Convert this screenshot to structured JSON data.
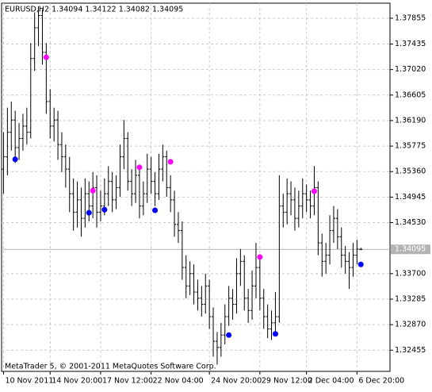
{
  "chart_data": {
    "type": "ohlc",
    "title": "EURUSD,H2  1.34094 1.34122 1.34082 1.34095",
    "footer": "MetaTrader 5, © 2001-2011 MetaQuotes Software Corp.",
    "xlim": [
      -0.5,
      99.5
    ],
    "ylim": [
      1.3211,
      1.381
    ],
    "grid": true,
    "color": "#000000",
    "yticks": [
      1.37855,
      1.37435,
      {
        "value": 1.3702,
        "label": "1.37020"
      },
      1.36605,
      {
        "value": 1.3619,
        "label": "1.36190"
      },
      1.35775,
      {
        "value": 1.3536,
        "label": "1.35360"
      },
      1.34945,
      {
        "value": 1.3453,
        "label": "1.34530"
      },
      {
        "value": 1.337,
        "label": "1.33700"
      },
      1.33285,
      {
        "value": 1.3287,
        "label": "1.32870"
      },
      1.32455
    ],
    "xticks": [
      {
        "value": 0,
        "label": "10 Nov 2011"
      },
      {
        "value": 12,
        "label": "14 Nov 20:00"
      },
      {
        "value": 25,
        "label": "17 Nov 12:00"
      },
      {
        "value": 38,
        "label": "22 Nov 04:00"
      },
      {
        "value": 53,
        "label": "24 Nov 20:00"
      },
      {
        "value": 66,
        "label": "29 Nov 12:00"
      },
      {
        "value": 78,
        "label": "2 Dec 04:00"
      },
      {
        "value": 91,
        "label": "6 Dec 20:00"
      }
    ],
    "open": [
      1.354,
      1.356,
      1.36,
      1.362,
      1.3575,
      1.359,
      1.361,
      1.36,
      1.372,
      1.377,
      1.379,
      1.373,
      1.365,
      1.361,
      1.362,
      1.358,
      1.356,
      1.354,
      1.35,
      1.347,
      1.349,
      1.346,
      1.35,
      1.348,
      1.351,
      1.347,
      1.348,
      1.35,
      1.352,
      1.349,
      1.351,
      1.356,
      1.359,
      1.352,
      1.35,
      1.353,
      1.348,
      1.35,
      1.354,
      1.352,
      1.35,
      1.354,
      1.356,
      1.351,
      1.349,
      1.345,
      1.344,
      1.338,
      1.335,
      1.337,
      1.334,
      1.333,
      1.332,
      1.335,
      1.33,
      1.326,
      1.325,
      1.327,
      1.33,
      1.333,
      1.332,
      1.337,
      1.339,
      1.333,
      1.331,
      1.335,
      1.338,
      1.333,
      1.33,
      1.328,
      1.329,
      1.33,
      1.348,
      1.347,
      1.35,
      1.349,
      1.346,
      1.348,
      1.35,
      1.349,
      1.348,
      1.351,
      1.342,
      1.339,
      1.34,
      1.344,
      1.346,
      1.343,
      1.34,
      1.339,
      1.338,
      1.34,
      1.34094
    ],
    "high": [
      1.36,
      1.364,
      1.365,
      1.3635,
      1.3615,
      1.363,
      1.364,
      1.3745,
      1.3795,
      1.3805,
      1.38,
      1.3745,
      1.367,
      1.364,
      1.3635,
      1.36,
      1.358,
      1.356,
      1.3525,
      1.352,
      1.351,
      1.3525,
      1.352,
      1.3535,
      1.353,
      1.3505,
      1.3525,
      1.3545,
      1.3535,
      1.353,
      1.358,
      1.362,
      1.36,
      1.354,
      1.3555,
      1.3545,
      1.352,
      1.3565,
      1.356,
      1.3535,
      1.3565,
      1.358,
      1.357,
      1.353,
      1.3505,
      1.347,
      1.3455,
      1.34,
      1.339,
      1.3385,
      1.336,
      1.335,
      1.337,
      1.336,
      1.3315,
      1.3275,
      1.329,
      1.332,
      1.335,
      1.3345,
      1.3395,
      1.341,
      1.34,
      1.3345,
      1.3375,
      1.342,
      1.3395,
      1.3345,
      1.332,
      1.331,
      1.334,
      1.353,
      1.35,
      1.3525,
      1.352,
      1.351,
      1.3505,
      1.3525,
      1.3515,
      1.3505,
      1.3545,
      1.352,
      1.3435,
      1.342,
      1.3465,
      1.348,
      1.3475,
      1.3445,
      1.3415,
      1.3405,
      1.342,
      1.3425,
      1.34122
    ],
    "low": [
      1.35,
      1.353,
      1.357,
      1.355,
      1.3555,
      1.357,
      1.358,
      1.359,
      1.37,
      1.374,
      1.371,
      1.363,
      1.359,
      1.3585,
      1.3555,
      1.3535,
      1.351,
      1.347,
      1.344,
      1.3445,
      1.343,
      1.3445,
      1.3455,
      1.346,
      1.3445,
      1.3455,
      1.3465,
      1.348,
      1.347,
      1.3475,
      1.3495,
      1.354,
      1.3505,
      1.348,
      1.3485,
      1.346,
      1.3465,
      1.3485,
      1.35,
      1.348,
      1.349,
      1.352,
      1.3495,
      1.347,
      1.343,
      1.342,
      1.336,
      1.333,
      1.3335,
      1.332,
      1.331,
      1.33,
      1.3305,
      1.328,
      1.3235,
      1.3222,
      1.3235,
      1.3255,
      1.3285,
      1.3295,
      1.3305,
      1.335,
      1.331,
      1.329,
      1.3295,
      1.333,
      1.331,
      1.328,
      1.3265,
      1.3262,
      1.3275,
      1.329,
      1.3445,
      1.345,
      1.3465,
      1.344,
      1.3445,
      1.346,
      1.347,
      1.346,
      1.3465,
      1.34,
      1.3365,
      1.337,
      1.3385,
      1.342,
      1.341,
      1.338,
      1.337,
      1.3345,
      1.3365,
      1.3385,
      1.34082
    ],
    "close": [
      1.356,
      1.36,
      1.362,
      1.3575,
      1.359,
      1.361,
      1.36,
      1.372,
      1.377,
      1.379,
      1.373,
      1.365,
      1.361,
      1.362,
      1.358,
      1.356,
      1.354,
      1.35,
      1.347,
      1.349,
      1.346,
      1.35,
      1.348,
      1.351,
      1.347,
      1.348,
      1.35,
      1.352,
      1.349,
      1.351,
      1.356,
      1.359,
      1.352,
      1.35,
      1.353,
      1.348,
      1.35,
      1.354,
      1.352,
      1.35,
      1.354,
      1.356,
      1.351,
      1.349,
      1.345,
      1.344,
      1.338,
      1.335,
      1.337,
      1.334,
      1.333,
      1.332,
      1.335,
      1.33,
      1.326,
      1.325,
      1.327,
      1.33,
      1.333,
      1.332,
      1.337,
      1.339,
      1.333,
      1.331,
      1.335,
      1.338,
      1.333,
      1.33,
      1.328,
      1.329,
      1.33,
      1.348,
      1.347,
      1.35,
      1.349,
      1.346,
      1.348,
      1.35,
      1.349,
      1.348,
      1.351,
      1.342,
      1.339,
      1.34,
      1.344,
      1.346,
      1.343,
      1.34,
      1.339,
      1.338,
      1.34,
      1.341,
      1.34095
    ],
    "series": [
      {
        "color": "#ff00ff",
        "x": [
          11,
          23,
          35,
          43,
          66,
          80
        ],
        "values": [
          1.3722,
          1.3505,
          1.3543,
          1.3552,
          1.3397,
          1.3504
        ]
      },
      {
        "color": "#0000ff",
        "x": [
          3,
          22,
          26,
          39,
          58,
          70,
          92
        ],
        "values": [
          1.3556,
          1.3469,
          1.3474,
          1.3473,
          1.327,
          1.3272,
          1.3385
        ]
      }
    ]
  }
}
